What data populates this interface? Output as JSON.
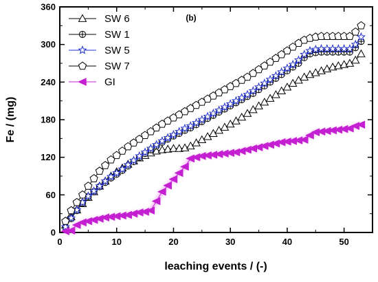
{
  "chart_data": {
    "type": "line",
    "panel_label": "(b)",
    "xlabel": "leaching events / (-)",
    "ylabel": "Fe / (mg)",
    "xlim": [
      0,
      55
    ],
    "ylim": [
      0,
      360
    ],
    "x_ticks": [
      0,
      10,
      20,
      30,
      40,
      50
    ],
    "y_ticks": [
      0,
      60,
      120,
      180,
      240,
      300,
      360
    ],
    "legend_position": "top-left",
    "series": [
      {
        "name": "SW 6",
        "marker": "triangle-up-open",
        "color": "#000000",
        "points": [
          [
            1,
            12
          ],
          [
            2,
            25
          ],
          [
            3,
            36
          ],
          [
            4,
            46
          ],
          [
            5,
            56
          ],
          [
            6,
            65
          ],
          [
            7,
            74
          ],
          [
            8,
            82
          ],
          [
            9,
            90
          ],
          [
            10,
            97
          ],
          [
            11,
            103
          ],
          [
            12,
            109
          ],
          [
            13,
            114
          ],
          [
            14,
            119
          ],
          [
            15,
            123
          ],
          [
            16,
            127
          ],
          [
            17,
            130
          ],
          [
            18,
            132
          ],
          [
            19,
            133
          ],
          [
            20,
            134
          ],
          [
            21,
            134
          ],
          [
            22,
            135
          ],
          [
            23,
            138
          ],
          [
            24,
            143
          ],
          [
            25,
            148
          ],
          [
            26,
            153
          ],
          [
            27,
            158
          ],
          [
            28,
            163
          ],
          [
            29,
            168
          ],
          [
            30,
            173
          ],
          [
            31,
            178
          ],
          [
            32,
            184
          ],
          [
            33,
            190
          ],
          [
            34,
            196
          ],
          [
            35,
            202
          ],
          [
            36,
            208
          ],
          [
            37,
            214
          ],
          [
            38,
            220
          ],
          [
            39,
            226
          ],
          [
            40,
            232
          ],
          [
            41,
            238
          ],
          [
            42,
            243
          ],
          [
            43,
            248
          ],
          [
            44,
            252
          ],
          [
            45,
            255
          ],
          [
            46,
            258
          ],
          [
            47,
            261
          ],
          [
            48,
            264
          ],
          [
            49,
            266
          ],
          [
            50,
            268
          ],
          [
            51,
            270
          ],
          [
            52,
            275
          ],
          [
            53,
            285
          ]
        ]
      },
      {
        "name": "SW 1",
        "marker": "circle-plus",
        "color": "#000000",
        "points": [
          [
            1,
            8
          ],
          [
            2,
            22
          ],
          [
            3,
            35
          ],
          [
            4,
            47
          ],
          [
            5,
            57
          ],
          [
            6,
            65
          ],
          [
            7,
            73
          ],
          [
            8,
            80
          ],
          [
            9,
            87
          ],
          [
            10,
            93
          ],
          [
            11,
            99
          ],
          [
            12,
            106
          ],
          [
            13,
            113
          ],
          [
            14,
            120
          ],
          [
            15,
            126
          ],
          [
            16,
            132
          ],
          [
            17,
            138
          ],
          [
            18,
            144
          ],
          [
            19,
            149
          ],
          [
            20,
            154
          ],
          [
            21,
            158
          ],
          [
            22,
            163
          ],
          [
            23,
            167
          ],
          [
            24,
            172
          ],
          [
            25,
            177
          ],
          [
            26,
            182
          ],
          [
            27,
            187
          ],
          [
            28,
            192
          ],
          [
            29,
            197
          ],
          [
            30,
            202
          ],
          [
            31,
            207
          ],
          [
            32,
            212
          ],
          [
            33,
            217
          ],
          [
            34,
            222
          ],
          [
            35,
            228
          ],
          [
            36,
            234
          ],
          [
            37,
            240
          ],
          [
            38,
            246
          ],
          [
            39,
            252
          ],
          [
            40,
            258
          ],
          [
            41,
            264
          ],
          [
            42,
            270
          ],
          [
            43,
            279
          ],
          [
            44,
            285
          ],
          [
            45,
            287
          ],
          [
            46,
            288
          ],
          [
            47,
            288
          ],
          [
            48,
            288
          ],
          [
            49,
            288
          ],
          [
            50,
            288
          ],
          [
            51,
            288
          ],
          [
            52,
            295
          ],
          [
            53,
            305
          ]
        ]
      },
      {
        "name": "SW 5",
        "marker": "star-open",
        "color": "#1f2fd0",
        "points": [
          [
            1,
            9
          ],
          [
            2,
            23
          ],
          [
            3,
            36
          ],
          [
            4,
            48
          ],
          [
            5,
            58
          ],
          [
            6,
            66
          ],
          [
            7,
            74
          ],
          [
            8,
            82
          ],
          [
            9,
            89
          ],
          [
            10,
            95
          ],
          [
            11,
            101
          ],
          [
            12,
            108
          ],
          [
            13,
            115
          ],
          [
            14,
            122
          ],
          [
            15,
            128
          ],
          [
            16,
            134
          ],
          [
            17,
            140
          ],
          [
            18,
            146
          ],
          [
            19,
            151
          ],
          [
            20,
            156
          ],
          [
            21,
            161
          ],
          [
            22,
            166
          ],
          [
            23,
            170
          ],
          [
            24,
            175
          ],
          [
            25,
            180
          ],
          [
            26,
            185
          ],
          [
            27,
            190
          ],
          [
            28,
            195
          ],
          [
            29,
            200
          ],
          [
            30,
            205
          ],
          [
            31,
            210
          ],
          [
            32,
            215
          ],
          [
            33,
            220
          ],
          [
            34,
            226
          ],
          [
            35,
            232
          ],
          [
            36,
            238
          ],
          [
            37,
            244
          ],
          [
            38,
            250
          ],
          [
            39,
            256
          ],
          [
            40,
            262
          ],
          [
            41,
            268
          ],
          [
            42,
            275
          ],
          [
            43,
            284
          ],
          [
            44,
            290
          ],
          [
            45,
            292
          ],
          [
            46,
            293
          ],
          [
            47,
            293
          ],
          [
            48,
            293
          ],
          [
            49,
            293
          ],
          [
            50,
            293
          ],
          [
            51,
            293
          ],
          [
            52,
            300
          ],
          [
            53,
            312
          ]
        ]
      },
      {
        "name": "SW 7",
        "marker": "pentagon-open",
        "color": "#000000",
        "points": [
          [
            1,
            18
          ],
          [
            2,
            35
          ],
          [
            3,
            48
          ],
          [
            4,
            60
          ],
          [
            5,
            74
          ],
          [
            6,
            86
          ],
          [
            7,
            98
          ],
          [
            8,
            107
          ],
          [
            9,
            116
          ],
          [
            10,
            123
          ],
          [
            11,
            130
          ],
          [
            12,
            137
          ],
          [
            13,
            143
          ],
          [
            14,
            149
          ],
          [
            15,
            155
          ],
          [
            16,
            161
          ],
          [
            17,
            167
          ],
          [
            18,
            173
          ],
          [
            19,
            178
          ],
          [
            20,
            183
          ],
          [
            21,
            188
          ],
          [
            22,
            193
          ],
          [
            23,
            198
          ],
          [
            24,
            203
          ],
          [
            25,
            208
          ],
          [
            26,
            213
          ],
          [
            27,
            218
          ],
          [
            28,
            223
          ],
          [
            29,
            228
          ],
          [
            30,
            233
          ],
          [
            31,
            238
          ],
          [
            32,
            243
          ],
          [
            33,
            248
          ],
          [
            34,
            254
          ],
          [
            35,
            260
          ],
          [
            36,
            266
          ],
          [
            37,
            272
          ],
          [
            38,
            278
          ],
          [
            39,
            284
          ],
          [
            40,
            290
          ],
          [
            41,
            296
          ],
          [
            42,
            302
          ],
          [
            43,
            307
          ],
          [
            44,
            310
          ],
          [
            45,
            312
          ],
          [
            46,
            313
          ],
          [
            47,
            313
          ],
          [
            48,
            313
          ],
          [
            49,
            313
          ],
          [
            50,
            313
          ],
          [
            51,
            313
          ],
          [
            52,
            320
          ],
          [
            53,
            330
          ]
        ]
      },
      {
        "name": "GI",
        "marker": "triangle-left-filled",
        "color": "#c41fd1",
        "points": [
          [
            1,
            2
          ],
          [
            2,
            3
          ],
          [
            3,
            12
          ],
          [
            4,
            16
          ],
          [
            5,
            18
          ],
          [
            6,
            20
          ],
          [
            7,
            22
          ],
          [
            8,
            24
          ],
          [
            9,
            25
          ],
          [
            10,
            26
          ],
          [
            11,
            27
          ],
          [
            12,
            28
          ],
          [
            13,
            30
          ],
          [
            14,
            32
          ],
          [
            15,
            33
          ],
          [
            16,
            35
          ],
          [
            17,
            50
          ],
          [
            18,
            65
          ],
          [
            19,
            75
          ],
          [
            20,
            85
          ],
          [
            21,
            95
          ],
          [
            22,
            105
          ],
          [
            23,
            118
          ],
          [
            24,
            120
          ],
          [
            25,
            122
          ],
          [
            26,
            123
          ],
          [
            27,
            124
          ],
          [
            28,
            125
          ],
          [
            29,
            126
          ],
          [
            30,
            127
          ],
          [
            31,
            128
          ],
          [
            32,
            130
          ],
          [
            33,
            132
          ],
          [
            34,
            134
          ],
          [
            35,
            136
          ],
          [
            36,
            138
          ],
          [
            37,
            140
          ],
          [
            38,
            142
          ],
          [
            39,
            144
          ],
          [
            40,
            145
          ],
          [
            41,
            146
          ],
          [
            42,
            147
          ],
          [
            43,
            148
          ],
          [
            44,
            155
          ],
          [
            45,
            160
          ],
          [
            46,
            161
          ],
          [
            47,
            162
          ],
          [
            48,
            163
          ],
          [
            49,
            164
          ],
          [
            50,
            165
          ],
          [
            51,
            166
          ],
          [
            52,
            170
          ],
          [
            53,
            172
          ]
        ]
      }
    ]
  }
}
